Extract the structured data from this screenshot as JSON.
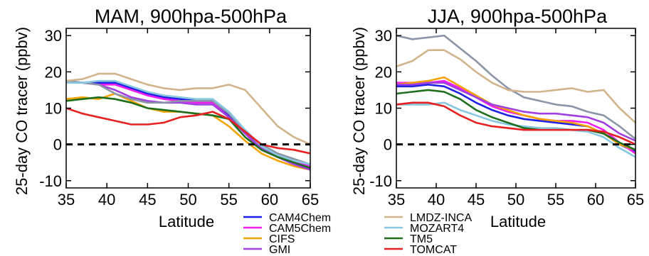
{
  "colors": {
    "CAM4Chem": "#1f1fe6",
    "CAM5Chem": "#f01cf0",
    "CIFS": "#f5a300",
    "GMI": "#a040e0",
    "GFDL": "#8a96a8",
    "LMDZ-INCA": "#d2b48c",
    "MOZART4": "#87c8e0",
    "TM5": "#1e6e1e",
    "TOMCAT": "#e62020",
    "zero_line": "#000000"
  },
  "legend": {
    "placement": "bottom-center",
    "entries": [
      "CAM4Chem",
      "CAM5Chem",
      "CIFS",
      "GMI",
      "LMDZ-INCA",
      "MOZART4",
      "TM5",
      "TOMCAT"
    ]
  },
  "chart_data": [
    {
      "type": "line",
      "title": "MAM, 900hpa-500hPa",
      "xlabel": "Latitude",
      "ylabel": "25-day CO tracer (ppbv)",
      "xlim": [
        35,
        65
      ],
      "ylim": [
        -12,
        32
      ],
      "xticks": [
        35,
        40,
        45,
        50,
        55,
        60,
        65
      ],
      "yticks": [
        -10,
        0,
        10,
        20,
        30
      ],
      "grid": false,
      "reference_line": {
        "y": 0,
        "style": "dashed"
      },
      "x": [
        35,
        37,
        39,
        41,
        43,
        45,
        47,
        49,
        51,
        53,
        55,
        57,
        59,
        61,
        63,
        65
      ],
      "series": [
        {
          "name": "CAM4Chem",
          "values": [
            17,
            17,
            17,
            17,
            15.5,
            14,
            13,
            12.5,
            12,
            12,
            8,
            3.5,
            -1,
            -3.5,
            -5.5,
            -6.5
          ]
        },
        {
          "name": "CAM5Chem",
          "values": [
            17.5,
            17,
            16.5,
            16.5,
            15,
            13.5,
            12.5,
            12,
            11.5,
            11.5,
            7.5,
            3,
            -1.5,
            -3.5,
            -5,
            -6
          ]
        },
        {
          "name": "CIFS",
          "values": [
            12.5,
            13,
            12.5,
            14,
            12,
            10,
            9,
            9,
            8.5,
            8,
            5,
            1,
            -2.5,
            -4.5,
            -6,
            -7
          ]
        },
        {
          "name": "GMI",
          "values": [
            17.5,
            17,
            16.5,
            15,
            13,
            12,
            11.5,
            11.5,
            11,
            11,
            7.5,
            3,
            -1,
            -3.5,
            -5.5,
            -7
          ]
        },
        {
          "name": "",
          "values": [
            17.5,
            17,
            16.5,
            14,
            12.5,
            11.5,
            11.5,
            12,
            12,
            12,
            8.5,
            3.5,
            0,
            -2.5,
            -4,
            -5.5
          ]
        },
        {
          "name": "LMDZ-INCA",
          "values": [
            17.5,
            18,
            19.5,
            19.5,
            18,
            16.5,
            15.5,
            15,
            15.5,
            15.5,
            16.5,
            15,
            10,
            5,
            2,
            0
          ]
        },
        {
          "name": "MOZART4",
          "values": [
            17,
            17,
            17.5,
            17.5,
            16,
            14.5,
            13.5,
            13,
            12.5,
            12.5,
            9,
            4,
            -0.5,
            -3,
            -4.5,
            -5.5
          ]
        },
        {
          "name": "TM5",
          "values": [
            12,
            12.5,
            13,
            12.5,
            11.5,
            10,
            9.5,
            9,
            8.5,
            8,
            7,
            2,
            -1.5,
            -3.5,
            -5,
            -6.5
          ]
        },
        {
          "name": "TOMCAT",
          "values": [
            10,
            8.5,
            7.5,
            6.5,
            5.5,
            5.5,
            6,
            7.5,
            8,
            9,
            7,
            3.5,
            0,
            -1,
            -1.5,
            -2.5
          ]
        }
      ]
    },
    {
      "type": "line",
      "title": "JJA, 900hpa-500hPa",
      "xlabel": "Latitude",
      "ylabel": "25-day CO tracer (ppbv)",
      "xlim": [
        35,
        65
      ],
      "ylim": [
        -12,
        32
      ],
      "xticks": [
        35,
        40,
        45,
        50,
        55,
        60,
        65
      ],
      "yticks": [
        -10,
        0,
        10,
        20,
        30
      ],
      "grid": false,
      "reference_line": {
        "y": 0,
        "style": "dashed"
      },
      "x": [
        35,
        37,
        39,
        41,
        43,
        45,
        47,
        49,
        51,
        53,
        55,
        57,
        59,
        61,
        63,
        65
      ],
      "series": [
        {
          "name": "CAM4Chem",
          "values": [
            16,
            16,
            16.5,
            16,
            14,
            11.5,
            9.5,
            8,
            7,
            6.5,
            6,
            5.5,
            5,
            3,
            0,
            -2
          ]
        },
        {
          "name": "CAM5Chem",
          "values": [
            17,
            17,
            17,
            17.5,
            15.5,
            13,
            10.5,
            9,
            8,
            7,
            6.5,
            6.5,
            6,
            4,
            0.5,
            -2.5
          ]
        },
        {
          "name": "CIFS",
          "values": [
            16.5,
            17,
            17.5,
            18.5,
            16,
            13.5,
            11,
            9.5,
            8,
            7,
            6.5,
            6,
            5,
            3,
            0,
            -1.5
          ]
        },
        {
          "name": "GMI",
          "values": [
            16.5,
            16.5,
            17,
            17,
            15,
            13,
            11,
            10,
            9,
            8.5,
            8.5,
            8,
            7.5,
            6,
            3,
            1
          ]
        },
        {
          "name": "",
          "values": [
            30,
            29,
            29.5,
            30,
            26.5,
            23,
            19,
            15.5,
            13,
            12,
            11,
            10.5,
            9,
            8,
            5,
            1.5
          ]
        },
        {
          "name": "LMDZ-INCA",
          "values": [
            21.5,
            23,
            26,
            26,
            23.5,
            20,
            17,
            15,
            14.5,
            14.5,
            15,
            15.5,
            14.5,
            15,
            10,
            6
          ]
        },
        {
          "name": "MOZART4",
          "values": [
            11,
            11,
            11,
            11.5,
            9.5,
            8,
            6.5,
            5.5,
            5,
            4.5,
            4.5,
            4,
            3.5,
            2,
            -1,
            -3.5
          ]
        },
        {
          "name": "TM5",
          "values": [
            14,
            14.5,
            15,
            14.5,
            12.5,
            9.5,
            7.5,
            6,
            4.5,
            4,
            4,
            4,
            4,
            3,
            0.5,
            -1.5
          ]
        },
        {
          "name": "TOMCAT",
          "values": [
            11,
            11.5,
            11.5,
            10.5,
            8,
            6,
            5,
            4.5,
            4,
            4,
            4,
            4,
            4,
            3.5,
            2,
            0
          ]
        }
      ]
    }
  ]
}
